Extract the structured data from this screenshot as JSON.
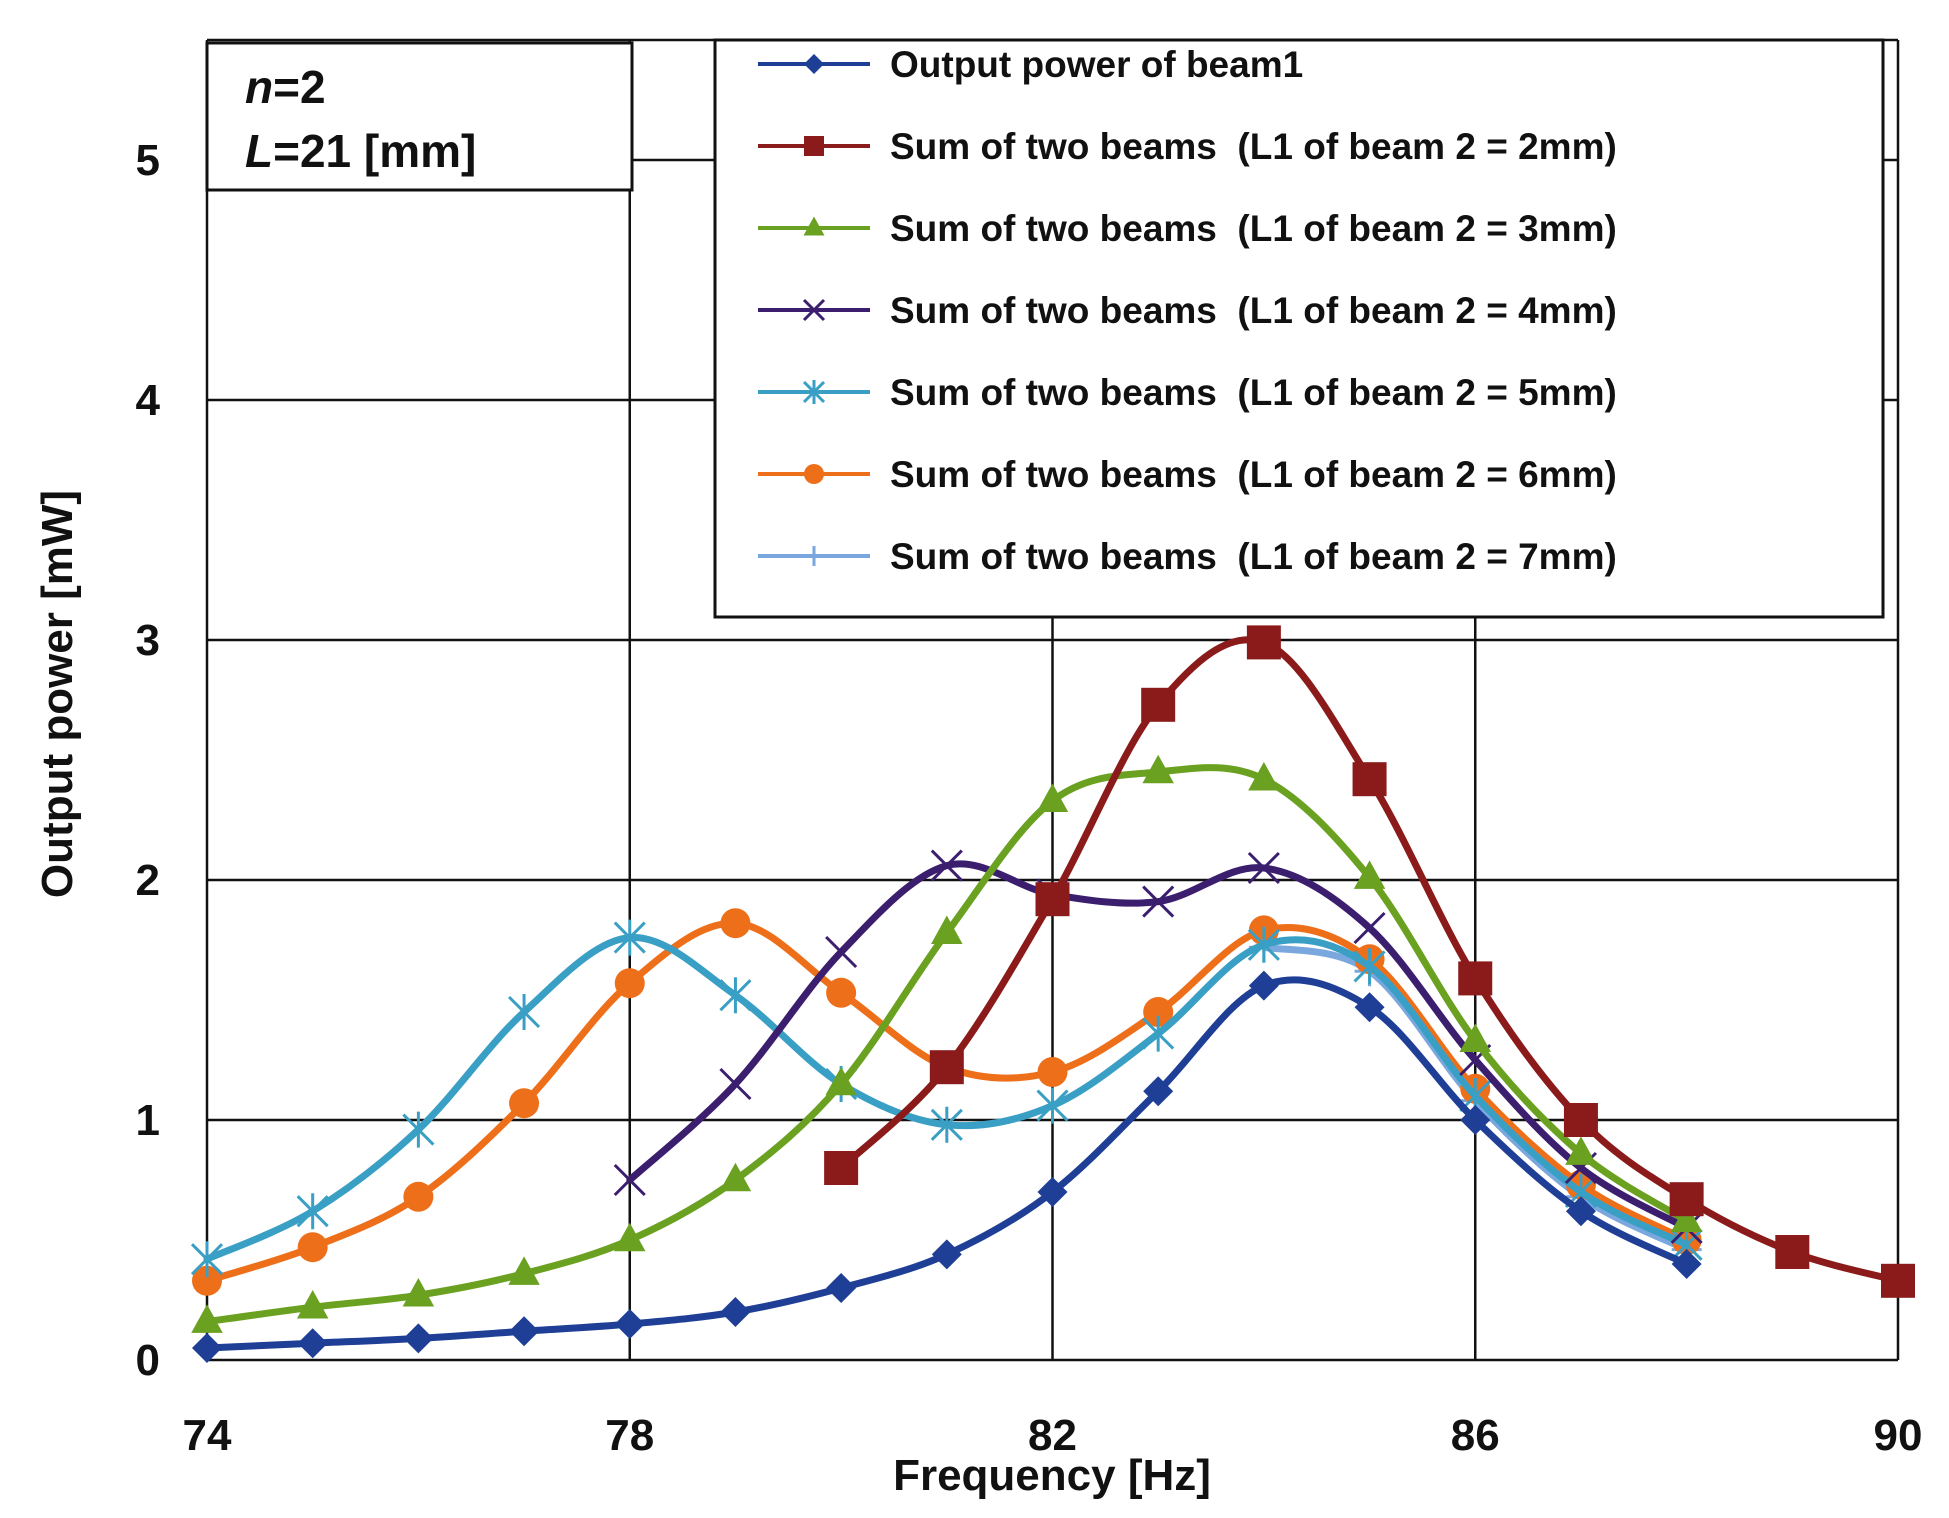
{
  "chart_data": {
    "type": "line",
    "xlabel": "Frequency [Hz]",
    "ylabel": "Output power [mW]",
    "xlim": [
      74,
      90
    ],
    "ylim": [
      0,
      5.5
    ],
    "xticks": [
      74,
      78,
      82,
      86,
      90
    ],
    "yticks": [
      0,
      1,
      2,
      3,
      4,
      5
    ],
    "grid": true,
    "legend_position": "top-right",
    "params": {
      "n_label": "n",
      "n_value": "=2",
      "L_label": "L",
      "L_value": "=21 [mm]"
    },
    "series": [
      {
        "name": "Output power of beam1",
        "color": "#1f3f96",
        "marker": "diamond",
        "x": [
          74,
          75,
          76,
          77,
          78,
          79,
          80,
          81,
          82,
          83,
          84,
          85,
          86,
          87,
          88
        ],
        "y": [
          0.05,
          0.07,
          0.09,
          0.12,
          0.15,
          0.2,
          0.3,
          0.44,
          0.7,
          1.12,
          1.56,
          1.47,
          1.0,
          0.62,
          0.4
        ]
      },
      {
        "name": "Sum of two beams  (L1 of beam 2 = 2mm)",
        "color": "#8b1a1a",
        "marker": "square",
        "x": [
          80,
          81,
          82,
          83,
          84,
          85,
          86,
          87,
          88,
          89,
          90
        ],
        "y": [
          0.8,
          1.22,
          1.92,
          2.73,
          2.99,
          2.42,
          1.59,
          1.0,
          0.67,
          0.45,
          0.33
        ]
      },
      {
        "name": "Sum of two beams  (L1 of beam 2 = 3mm)",
        "color": "#6aa121",
        "marker": "triangle",
        "x": [
          74,
          75,
          76,
          77,
          78,
          79,
          80,
          81,
          82,
          83,
          84,
          85,
          86,
          87,
          88
        ],
        "y": [
          0.16,
          0.22,
          0.27,
          0.36,
          0.5,
          0.75,
          1.15,
          1.78,
          2.33,
          2.45,
          2.42,
          2.01,
          1.33,
          0.86,
          0.58
        ]
      },
      {
        "name": "Sum of two beams  (L1 of beam 2 = 4mm)",
        "color": "#3b1e6e",
        "marker": "x",
        "x": [
          78,
          79,
          80,
          81,
          82,
          83,
          84,
          85,
          86,
          87,
          88
        ],
        "y": [
          0.75,
          1.15,
          1.7,
          2.06,
          1.94,
          1.91,
          2.05,
          1.8,
          1.25,
          0.8,
          0.55
        ]
      },
      {
        "name": "Sum of two beams  (L1 of beam 2 = 5mm)",
        "color": "#3a9fc4",
        "marker": "asterisk",
        "x": [
          74,
          75,
          76,
          77,
          78,
          79,
          80,
          81,
          82,
          83,
          84,
          85,
          86,
          87,
          88
        ],
        "y": [
          0.42,
          0.62,
          0.96,
          1.45,
          1.76,
          1.52,
          1.15,
          0.98,
          1.06,
          1.36,
          1.73,
          1.64,
          1.1,
          0.7,
          0.48
        ]
      },
      {
        "name": "Sum of two beams  (L1 of beam 2 = 6mm)",
        "color": "#ee6f1a",
        "marker": "circle",
        "x": [
          74,
          75,
          76,
          77,
          78,
          79,
          80,
          81,
          82,
          83,
          84,
          85,
          86,
          87,
          88
        ],
        "y": [
          0.33,
          0.47,
          0.68,
          1.07,
          1.57,
          1.82,
          1.53,
          1.22,
          1.2,
          1.45,
          1.79,
          1.67,
          1.13,
          0.73,
          0.5
        ]
      },
      {
        "name": "Sum of two beams  (L1 of beam 2 = 7mm)",
        "color": "#7aa7de",
        "marker": "plus",
        "x": [
          84,
          85,
          86,
          87,
          88
        ],
        "y": [
          1.72,
          1.62,
          1.08,
          0.68,
          0.46
        ]
      }
    ]
  }
}
